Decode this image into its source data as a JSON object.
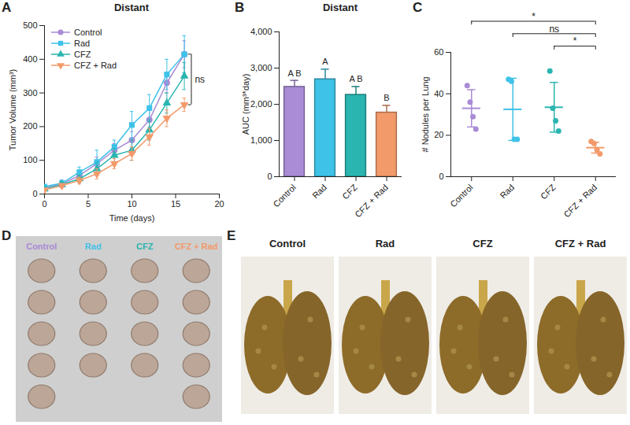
{
  "chart_data": [
    {
      "panel": "A",
      "type": "line",
      "title": "Distant",
      "x_label": "Time (days)",
      "y_label": "Tumor Volume (mm³)",
      "x": [
        0,
        2,
        4,
        6,
        8,
        10,
        12,
        14,
        16
      ],
      "xlim": [
        0,
        20
      ],
      "xticks": [
        0,
        5,
        10,
        15,
        20
      ],
      "ylim": [
        0,
        500
      ],
      "yticks": [
        0,
        100,
        200,
        300,
        400,
        500
      ],
      "legend": "top-left",
      "series": [
        {
          "name": "Control",
          "color": "#a98bd6",
          "marker": "circle",
          "values": [
            20,
            30,
            55,
            90,
            130,
            160,
            220,
            330,
            415
          ],
          "errors": [
            5,
            8,
            12,
            20,
            20,
            25,
            30,
            30,
            40
          ]
        },
        {
          "name": "Rad",
          "color": "#3ec2e8",
          "marker": "square",
          "values": [
            22,
            32,
            65,
            95,
            140,
            205,
            255,
            355,
            415
          ],
          "errors": [
            6,
            10,
            15,
            35,
            20,
            40,
            40,
            45,
            55
          ]
        },
        {
          "name": "CFZ",
          "color": "#2ab5b0",
          "marker": "triangle",
          "values": [
            15,
            28,
            45,
            75,
            115,
            130,
            190,
            270,
            350
          ],
          "errors": [
            5,
            8,
            10,
            20,
            20,
            30,
            30,
            30,
            40
          ]
        },
        {
          "name": "CFZ + Rad",
          "color": "#f39a6b",
          "marker": "triangle-down",
          "values": [
            12,
            25,
            40,
            60,
            90,
            120,
            170,
            225,
            265
          ],
          "errors": [
            4,
            6,
            10,
            15,
            15,
            20,
            25,
            25,
            20
          ]
        }
      ],
      "annotations": [
        {
          "text": "ns",
          "from": "Rad",
          "to": "CFZ + Rad"
        }
      ]
    },
    {
      "panel": "B",
      "type": "bar",
      "title": "Distant",
      "y_label": "AUC (mm³*day)",
      "categories": [
        "Control",
        "Rad",
        "CFZ",
        "CFZ + Rad"
      ],
      "values": [
        2480,
        2690,
        2260,
        1770
      ],
      "errors": [
        180,
        280,
        230,
        200
      ],
      "colors": [
        "#a98bd6",
        "#3ec2e8",
        "#2ab5b0",
        "#f39a6b"
      ],
      "group_labels": [
        "A B",
        "A",
        "A B",
        "B"
      ],
      "ylim": [
        0,
        4000
      ],
      "yticks": [
        0,
        1000,
        2000,
        3000,
        4000
      ]
    },
    {
      "panel": "C",
      "type": "scatter",
      "y_label": "# Nodules per Lung",
      "categories": [
        "Control",
        "Rad",
        "CFZ",
        "CFZ + Rad"
      ],
      "points": [
        [
          44,
          36,
          29,
          23
        ],
        [
          47,
          46,
          18,
          18
        ],
        [
          51,
          33,
          27,
          22
        ],
        [
          17,
          16,
          13,
          11
        ]
      ],
      "means": [
        33,
        32.5,
        33.5,
        14
      ],
      "sd": [
        9,
        15,
        12,
        2.6
      ],
      "colors": [
        "#a98bd6",
        "#3ec2e8",
        "#2ab5b0",
        "#f39a6b"
      ],
      "ylim": [
        0,
        60
      ],
      "yticks": [
        0,
        20,
        40,
        60
      ],
      "comparisons": [
        {
          "from": "Control",
          "to": "CFZ + Rad",
          "label": "*"
        },
        {
          "from": "Rad",
          "to": "CFZ + Rad",
          "label": "ns"
        },
        {
          "from": "CFZ",
          "to": "CFZ + Rad",
          "label": "*"
        }
      ]
    }
  ],
  "photos": [
    {
      "panel": "D",
      "labels": [
        "Control",
        "Rad",
        "CFZ",
        "CFZ + Rad"
      ],
      "colors": [
        "#a98bd6",
        "#3ec2e8",
        "#2ab5b0",
        "#f39a6b"
      ],
      "tumor_counts": [
        5,
        4,
        4,
        5
      ]
    },
    {
      "panel": "E",
      "labels": [
        "Control",
        "Rad",
        "CFZ",
        "CFZ + Rad"
      ]
    }
  ]
}
